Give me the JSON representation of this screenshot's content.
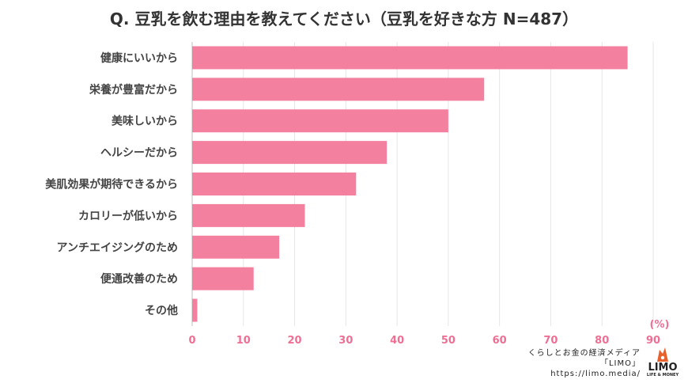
{
  "title": "Q. 豆乳を飲む理由を教えてください（豆乳を好きな方 N=487）",
  "chart_data": {
    "type": "bar",
    "orientation": "horizontal",
    "title": "Q. 豆乳を飲む理由を教えてください（豆乳を好きな方 N=487）",
    "categories": [
      "健康にいいから",
      "栄養が豊富だから",
      "美味しいから",
      "ヘルシーだから",
      "美肌効果が期待できるから",
      "カロリーが低いから",
      "アンチエイジングのため",
      "便通改善のため",
      "その他"
    ],
    "values": [
      85,
      57,
      50,
      38,
      32,
      22,
      17,
      12,
      1
    ],
    "xlim": [
      0,
      90
    ],
    "xticks": [
      0,
      10,
      20,
      30,
      40,
      50,
      60,
      70,
      80,
      90
    ],
    "unit_label": "(%)",
    "grid": true,
    "bar_color": "#f4809f",
    "tick_color": "#ee6f94"
  },
  "credit": {
    "line1": "くらしとお金の経済メディア",
    "line2": "「LIMO」",
    "url": "https://limo.media/"
  },
  "logo": {
    "name": "LIMO",
    "tagline": "LIFE & MONEY"
  },
  "colors": {
    "bar": "#f4809f",
    "tick": "#ee6f94",
    "logo_mark": "#e8602c"
  }
}
